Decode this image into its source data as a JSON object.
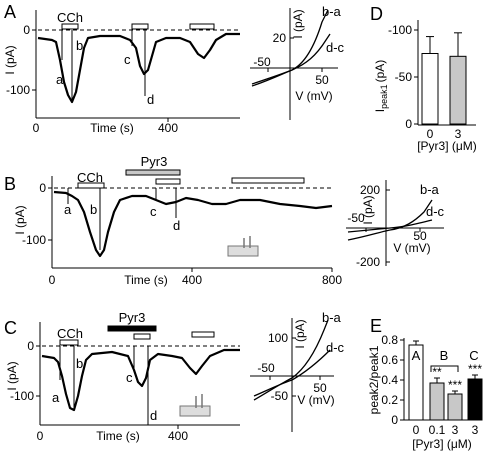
{
  "panels": {
    "A": {
      "label": "A",
      "ylabel": "I (pA)",
      "xlabel": "Time (s)",
      "yticks": [
        "0",
        "-100"
      ],
      "xticks": [
        "0",
        "400"
      ],
      "drug": "CCh",
      "points": [
        "a",
        "b",
        "c",
        "d"
      ]
    },
    "A_iv": {
      "ylabel": "I (pA)",
      "xlabel": "V (mV)",
      "yticks": [
        "20"
      ],
      "xticks": [
        "-50",
        "50"
      ],
      "curves": [
        "b-a",
        "d-c"
      ]
    },
    "B": {
      "label": "B",
      "ylabel": "I (pA)",
      "xlabel": "Time (s)",
      "yticks": [
        "0",
        "-100"
      ],
      "xticks": [
        "0",
        "400",
        "800"
      ],
      "drugs": [
        "CCh",
        "Pyr3"
      ],
      "points": [
        "a",
        "b",
        "c",
        "d"
      ]
    },
    "B_iv": {
      "ylabel": "I (pA)",
      "xlabel": "V (mV)",
      "yticks": [
        "200",
        "-200"
      ],
      "xticks": [
        "-50",
        "50"
      ],
      "curves": [
        "b-a",
        "d-c"
      ]
    },
    "C": {
      "label": "C",
      "ylabel": "I (pA)",
      "xlabel": "Time (s)",
      "yticks": [
        "0",
        "-100"
      ],
      "xticks": [
        "0",
        "400"
      ],
      "drugs": [
        "CCh",
        "Pyr3"
      ],
      "points": [
        "a",
        "b",
        "c",
        "d"
      ]
    },
    "C_iv": {
      "ylabel": "I (pA)",
      "xlabel": "V (mV)",
      "yticks": [
        "100",
        "-50"
      ],
      "xticks": [
        "-50",
        "50"
      ],
      "curves": [
        "b-a",
        "d-c"
      ]
    },
    "D": {
      "label": "D",
      "ylabel": "I",
      "ylabel_sub": "peak1",
      "ylabel_unit": "(pA)",
      "xlabel": "[Pyr3] (μM)",
      "yticks": [
        "-100",
        "-50",
        "0"
      ]
    },
    "E": {
      "label": "E",
      "ylabel": "peak2/peak1",
      "xlabel": "[Pyr3] (μM)",
      "yticks": [
        "0.8",
        "0.6",
        "0.4",
        "0.2",
        "0"
      ],
      "groups": [
        "A",
        "B",
        "C"
      ]
    }
  },
  "chart_data": [
    {
      "type": "bar",
      "panel": "D",
      "categories": [
        "0",
        "3"
      ],
      "values": [
        -75,
        -72
      ],
      "errors": [
        18,
        25
      ],
      "colors": [
        "#ffffff",
        "#c8c8c8"
      ],
      "ylim": [
        -110,
        0
      ],
      "xlabel": "[Pyr3] (μM)",
      "ylabel": "I peak1 (pA)"
    },
    {
      "type": "bar",
      "panel": "E",
      "categories": [
        "0",
        "0.1",
        "3",
        "3"
      ],
      "values": [
        0.75,
        0.37,
        0.26,
        0.41
      ],
      "errors": [
        0.04,
        0.05,
        0.03,
        0.04
      ],
      "colors": [
        "#ffffff",
        "#c8c8c8",
        "#c8c8c8",
        "#000000"
      ],
      "significance": [
        "",
        "**",
        "***",
        "***"
      ],
      "ylim": [
        0,
        0.8
      ],
      "xlabel": "[Pyr3] (μM)",
      "ylabel": "peak2/peak1"
    }
  ]
}
